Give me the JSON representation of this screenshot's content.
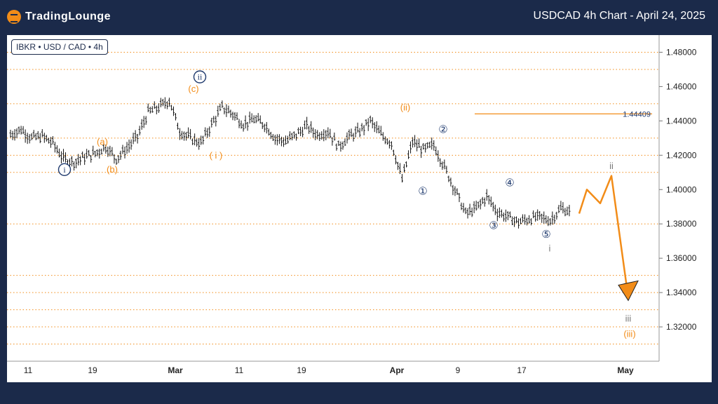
{
  "header": {
    "logo_text": "TradingLounge",
    "title": "USDCAD 4h Chart - April 24, 2025"
  },
  "symbol_label": "IBKR • USD / CAD • 4h",
  "colors": {
    "background": "#1b2a4a",
    "accent": "#f28c18",
    "wave_blue": "#1f3a6e",
    "grid": "#f28c18",
    "candles": "#111111"
  },
  "chart_data": {
    "type": "line",
    "subtype": "candlestick-price-with-elliott-wave-labels",
    "ylim": [
      1.3,
      1.49
    ],
    "y_axis_position": "right",
    "y_ticks": [
      "1.48000",
      "1.46000",
      "1.44000",
      "1.42000",
      "1.40000",
      "1.38000",
      "1.36000",
      "1.34000",
      "1.32000"
    ],
    "x_ticks": [
      "11",
      "19",
      "Mar",
      "11",
      "19",
      "Apr",
      "9",
      "17",
      "May"
    ],
    "grid": "dotted horizontal",
    "price_path": [
      [
        "11",
        1.432
      ],
      [
        "",
        1.435
      ],
      [
        "",
        1.43
      ],
      [
        "",
        1.431
      ],
      [
        "",
        1.427
      ],
      [
        "",
        1.418
      ],
      [
        "",
        1.416
      ],
      [
        "19",
        1.419
      ],
      [
        "",
        1.421
      ],
      [
        "",
        1.425
      ],
      [
        "",
        1.418
      ],
      [
        "",
        1.424
      ],
      [
        "",
        1.431
      ],
      [
        "",
        1.445
      ],
      [
        "Mar",
        1.448
      ],
      [
        "",
        1.452
      ],
      [
        "",
        1.434
      ],
      [
        "",
        1.43
      ],
      [
        "",
        1.427
      ],
      [
        "",
        1.438
      ],
      [
        "",
        1.448
      ],
      [
        "11",
        1.444
      ],
      [
        "",
        1.438
      ],
      [
        "",
        1.441
      ],
      [
        "",
        1.438
      ],
      [
        "",
        1.43
      ],
      [
        "",
        1.428
      ],
      [
        "",
        1.432
      ],
      [
        "19",
        1.437
      ],
      [
        "",
        1.432
      ],
      [
        "",
        1.434
      ],
      [
        "",
        1.425
      ],
      [
        "",
        1.431
      ],
      [
        "",
        1.434
      ],
      [
        "",
        1.44
      ],
      [
        "Apr",
        1.432
      ],
      [
        "",
        1.427
      ],
      [
        "",
        1.406
      ],
      [
        "",
        1.428
      ],
      [
        "",
        1.423
      ],
      [
        "",
        1.426
      ],
      [
        "",
        1.413
      ],
      [
        "9",
        1.4
      ],
      [
        "",
        1.386
      ],
      [
        "",
        1.389
      ],
      [
        "",
        1.396
      ],
      [
        "",
        1.387
      ],
      [
        "",
        1.384
      ],
      [
        "17",
        1.381
      ],
      [
        "",
        1.383
      ],
      [
        "",
        1.384
      ],
      [
        "",
        1.382
      ],
      [
        "",
        1.389
      ],
      [
        "",
        1.387
      ]
    ],
    "resistance_line": {
      "value": 1.44409,
      "label": "1.44409"
    },
    "projection": [
      [
        "",
        1.386
      ],
      [
        "",
        1.4
      ],
      [
        "",
        1.392
      ],
      [
        "",
        1.408
      ],
      [
        "",
        1.337
      ]
    ],
    "wave_labels": [
      {
        "text": "ⓘ",
        "price": 1.41,
        "anchor": "11",
        "color": "blue"
      },
      {
        "text": "(a)",
        "price": 1.426,
        "anchor": "19",
        "color": "orange"
      },
      {
        "text": "(b)",
        "price": 1.41,
        "anchor": "19",
        "color": "orange"
      },
      {
        "text": "ⓘⓘ",
        "price": 1.464,
        "anchor": "Mar",
        "color": "blue"
      },
      {
        "text": "(c)",
        "price": 1.457,
        "anchor": "Mar",
        "color": "orange"
      },
      {
        "text": "( i )",
        "price": 1.418,
        "anchor": "11",
        "color": "orange"
      },
      {
        "text": "(ii)",
        "price": 1.446,
        "anchor": "Apr",
        "color": "orange"
      },
      {
        "text": "①",
        "price": 1.397,
        "anchor": "Apr",
        "color": "blue"
      },
      {
        "text": "②",
        "price": 1.433,
        "anchor": "9",
        "color": "blue"
      },
      {
        "text": "③",
        "price": 1.377,
        "anchor": "9",
        "color": "blue"
      },
      {
        "text": "④",
        "price": 1.402,
        "anchor": "17",
        "color": "blue"
      },
      {
        "text": "⑤",
        "price": 1.372,
        "anchor": "17",
        "color": "blue"
      },
      {
        "text": "i",
        "price": 1.364,
        "anchor": "17",
        "color": "grey"
      },
      {
        "text": "ii",
        "price": 1.412,
        "anchor": "May",
        "color": "grey"
      },
      {
        "text": "iii",
        "price": 1.323,
        "anchor": "May",
        "color": "grey"
      },
      {
        "text": "(iii)",
        "price": 1.314,
        "anchor": "May",
        "color": "orange"
      }
    ]
  }
}
